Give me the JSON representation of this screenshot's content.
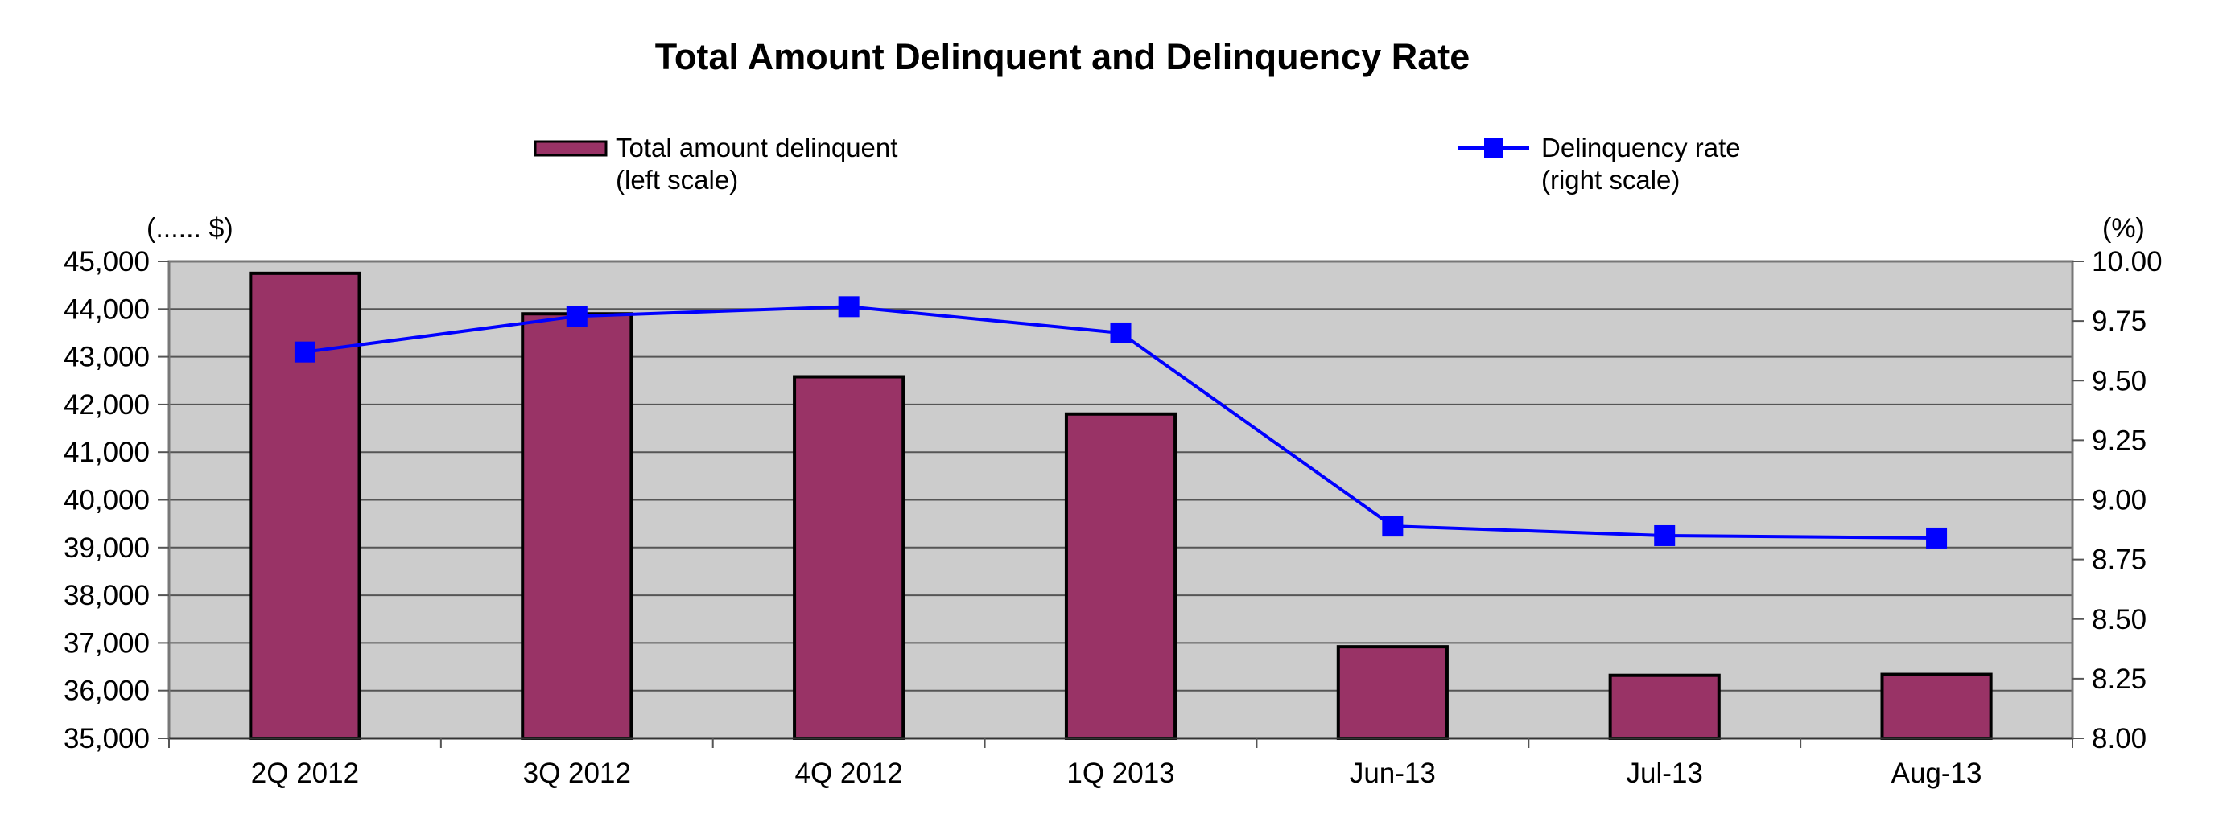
{
  "chart_data": {
    "type": "bar",
    "title": "Total Amount Delinquent and Delinquency Rate",
    "categories": [
      "2Q 2012",
      "3Q 2012",
      "4Q 2012",
      "1Q 2013",
      "Jun-13",
      "Jul-13",
      "Aug-13"
    ],
    "series": [
      {
        "name": "Total amount delinquent\n(left scale)",
        "type": "bar",
        "axis": "left",
        "values": [
          44750,
          43900,
          42580,
          41800,
          36920,
          36320,
          36340
        ]
      },
      {
        "name": "Delinquency rate\n(right scale)",
        "type": "line",
        "axis": "right",
        "values": [
          9.62,
          9.77,
          9.81,
          9.7,
          8.89,
          8.85,
          8.84
        ]
      }
    ],
    "y_left": {
      "label": "(...... $)",
      "lim": [
        35000,
        45000
      ],
      "ticks": [
        "35,000",
        "36,000",
        "37,000",
        "38,000",
        "39,000",
        "40,000",
        "41,000",
        "42,000",
        "43,000",
        "44,000",
        "45,000"
      ]
    },
    "y_right": {
      "label": "(%)",
      "lim": [
        8.0,
        10.0
      ],
      "ticks": [
        "8.00",
        "8.25",
        "8.50",
        "8.75",
        "9.00",
        "9.25",
        "9.50",
        "9.75",
        "10.00"
      ]
    },
    "grid": true,
    "legend_position": "top",
    "colors": {
      "bar_fill": "#993366",
      "bar_stroke": "#000000",
      "line": "#0000ff",
      "plot_bg": "#cccccc",
      "gridline": "#555555"
    }
  }
}
